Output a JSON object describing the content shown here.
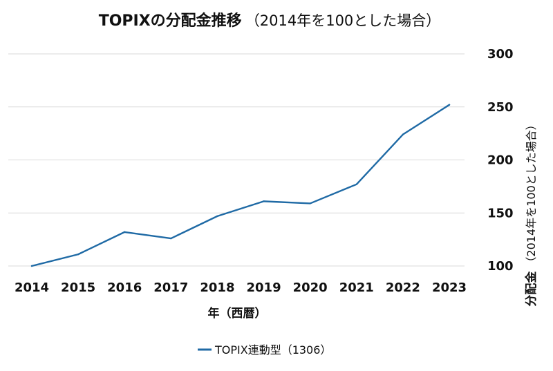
{
  "chart_data": {
    "type": "line",
    "title": "TOPIXの分配金推移",
    "subtitle": "（2014年を100とした場合）",
    "xlabel": "年（西暦）",
    "ylabel": "分配金",
    "ylabel_sub": "（2014年を100とした場合）",
    "y_axis_side": "right",
    "grid": true,
    "legend_position": "bottom",
    "categories": [
      "2014",
      "2015",
      "2016",
      "2017",
      "2018",
      "2019",
      "2020",
      "2021",
      "2022",
      "2023"
    ],
    "series": [
      {
        "name": "TOPIX連動型（1306）",
        "color": "#1f6aa5",
        "values": [
          100,
          111,
          132,
          126,
          147,
          161,
          159,
          177,
          224,
          252
        ]
      }
    ],
    "ylim": [
      100,
      300
    ],
    "yticks": [
      100,
      150,
      200,
      250,
      300
    ],
    "ytick_labels": [
      "100",
      "150",
      "200",
      "250",
      "300"
    ]
  }
}
